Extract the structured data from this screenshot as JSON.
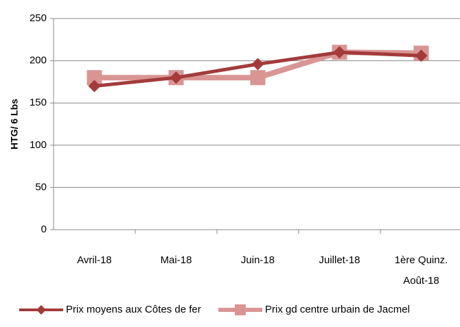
{
  "chart_data": {
    "type": "line",
    "categories": [
      "Avril-18",
      "Mai-18",
      "Juin-18",
      "Juillet-18",
      "1ère Quinz.\nAoût-18"
    ],
    "series": [
      {
        "name": "Prix moyens aux Côtes de fer",
        "color": "#a33b3b",
        "marker": "diamond",
        "values": [
          170,
          180,
          196,
          210,
          206
        ]
      },
      {
        "name": "Prix gd centre urbain de Jacmel",
        "color": "#d99594",
        "marker": "square",
        "values": [
          180,
          180,
          180,
          210,
          209
        ]
      }
    ],
    "y_label": "HTG/ 6 Lbs",
    "ylim": [
      0,
      250
    ],
    "yticks": [
      0,
      50,
      100,
      150,
      200,
      250
    ],
    "grid": true,
    "legend": "bottom"
  }
}
